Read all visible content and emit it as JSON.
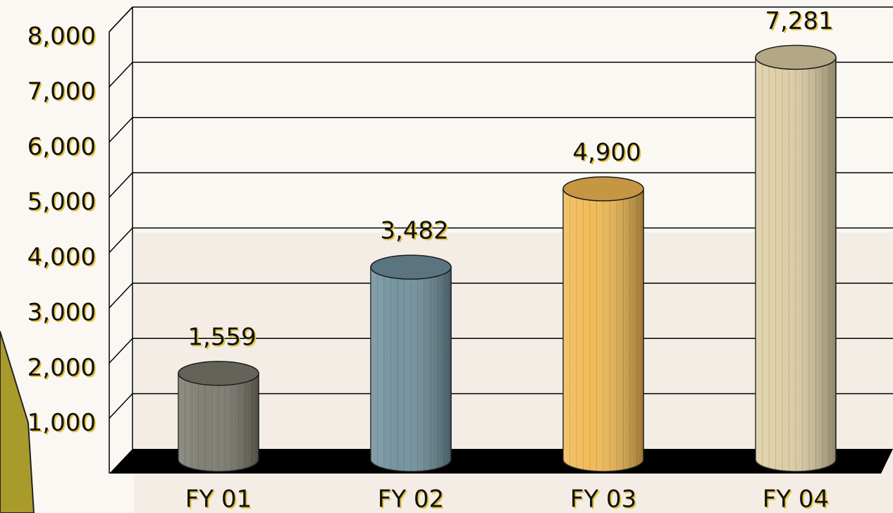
{
  "chart_data": {
    "type": "bar",
    "categories": [
      "FY 01",
      "FY 02",
      "FY 03",
      "FY 04"
    ],
    "values": [
      1559,
      3482,
      4900,
      7281
    ],
    "value_labels": [
      "1,559",
      "3,482",
      "4,900",
      "7,281"
    ],
    "colors": [
      "#7a796d",
      "#6e8f9c",
      "#f0b850",
      "#dccca2"
    ],
    "ylim": [
      0,
      8000
    ],
    "yticks": [
      {
        "value": 1000,
        "label": "1,000"
      },
      {
        "value": 2000,
        "label": "2,000"
      },
      {
        "value": 3000,
        "label": "3,000"
      },
      {
        "value": 4000,
        "label": "4,000"
      },
      {
        "value": 5000,
        "label": "5,000"
      },
      {
        "value": 6000,
        "label": "6,000"
      },
      {
        "value": 7000,
        "label": "7,000"
      },
      {
        "value": 8000,
        "label": "8,000"
      }
    ],
    "grid": true
  }
}
